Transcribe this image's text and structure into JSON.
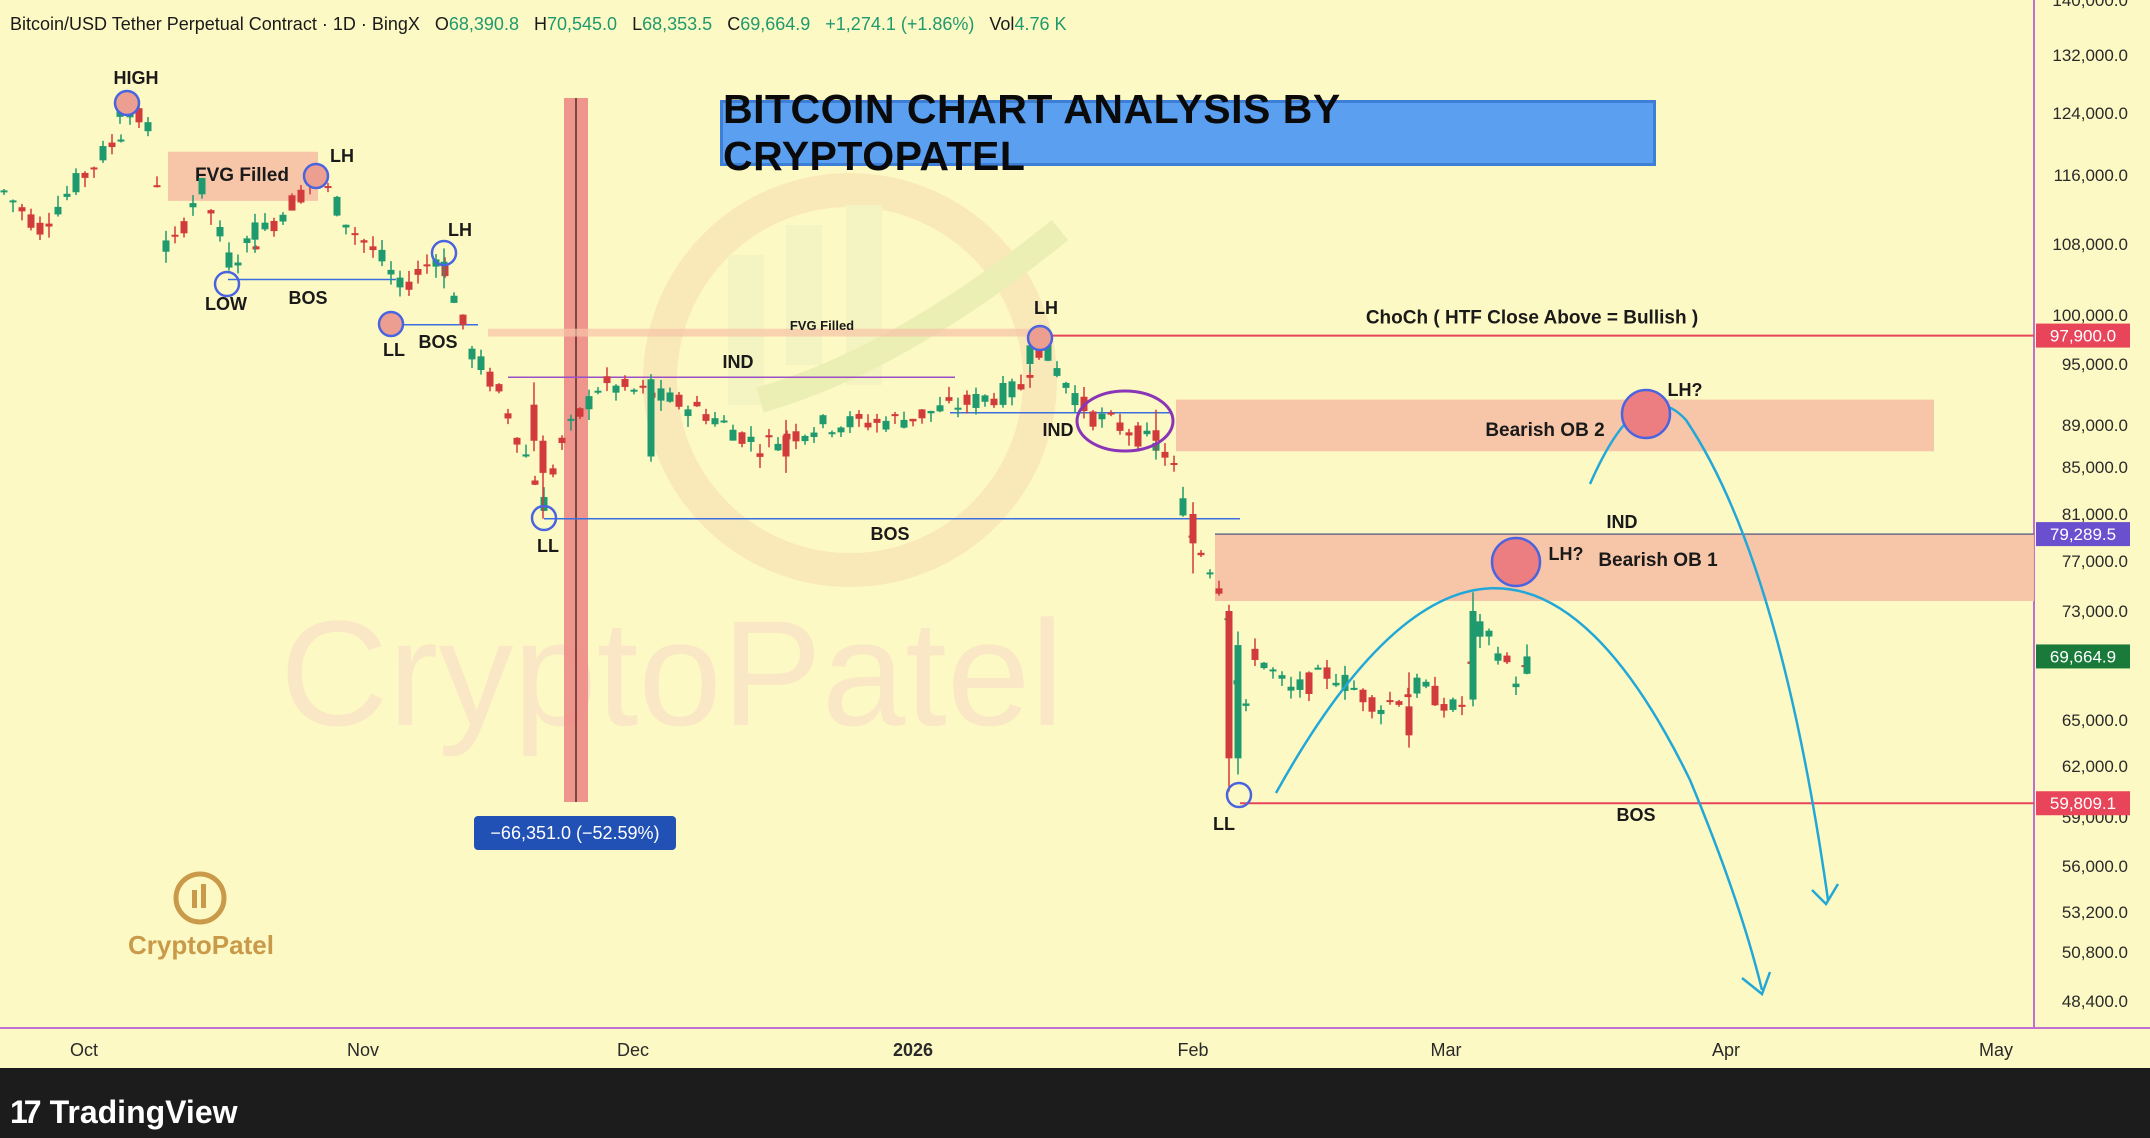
{
  "header": {
    "symbol": "Bitcoin/USD Tether Perpetual Contract · 1D · BingX",
    "open_label": "O",
    "open": "68,390.8",
    "high_label": "H",
    "high": "70,545.0",
    "low_label": "L",
    "low": "68,353.5",
    "close_label": "C",
    "close": "69,664.9",
    "change": "+1,274.1 (+1.86%)",
    "vol_label": "Vol",
    "vol": "4.76 K"
  },
  "title": "BITCOIN CHART ANALYSIS BY CRYPTOPATEL",
  "footer": {
    "brand": "TradingView"
  },
  "logo_text": "CryptoPatel",
  "colors": {
    "background": "#fdf9c4",
    "up": "#1f9a6f",
    "down": "#d23b3b",
    "resistance": "#e8455a",
    "zone": "#f7c3a6",
    "projection": "#22a8d8",
    "marker": "#4a64e0"
  },
  "chart_data": {
    "type": "candlestick",
    "title": "BITCOIN CHART ANALYSIS BY CRYPTOPATEL",
    "y_ticks": [
      "48,400.0",
      "50,800.0",
      "53,200.0",
      "56,000.0",
      "59,000.0",
      "62,000.0",
      "65,000.0",
      "73,000.0",
      "77,000.0",
      "81,000.0",
      "85,000.0",
      "89,000.0",
      "95,000.0",
      "100,000.0",
      "108,000.0",
      "116,000.0",
      "124,000.0",
      "132,000.0",
      "140,000.0"
    ],
    "x_ticks": [
      "Oct",
      "Nov",
      "Dec",
      "2026",
      "Feb",
      "Mar",
      "Apr",
      "May"
    ],
    "price_labels": [
      {
        "text": "97,900.0",
        "value": 97900,
        "color": "#e8455a"
      },
      {
        "text": "79,289.5",
        "value": 79289.5,
        "color": "#6a4fcf"
      },
      {
        "text": "69,664.9",
        "value": 69664.9,
        "color": "#1a7a3a"
      },
      {
        "text": "59,809.1",
        "value": 59809.1,
        "color": "#e8455a"
      }
    ],
    "measure": {
      "text": "−66,351.0 (−52.59%)"
    },
    "levels": [
      {
        "name": "choch",
        "value": 97900,
        "label": "ChoCh ( HTF Close Above = Bullish )"
      },
      {
        "name": "bos",
        "value": 59809.1,
        "label": "BOS"
      }
    ],
    "zones": [
      {
        "label": "Bearish OB 2",
        "from": 86500,
        "to": 91500
      },
      {
        "label": "Bearish OB 1",
        "from": 73800,
        "to": 79300
      },
      {
        "label": "FVG Filled",
        "from": 113000,
        "to": 119000
      },
      {
        "label": "FVG Filled",
        "from": 97800,
        "to": 98600
      }
    ],
    "candles": [
      {
        "date": "Oct 05",
        "ohlc": [
          123500,
          126100,
          122600,
          124800
        ]
      },
      {
        "date": "Oct 20",
        "ohlc": [
          108500,
          111500,
          107000,
          110500
        ]
      },
      {
        "date": "Nov 10",
        "ohlc": [
          105500,
          107500,
          103000,
          106000
        ]
      },
      {
        "date": "Nov 20",
        "ohlc": [
          91000,
          93200,
          86500,
          87500
        ]
      },
      {
        "date": "Nov 21",
        "ohlc": [
          87500,
          88000,
          80600,
          84500
        ]
      },
      {
        "date": "Dec 03",
        "ohlc": [
          86000,
          94000,
          85500,
          93500
        ]
      },
      {
        "date": "Dec 18",
        "ohlc": [
          88000,
          89500,
          84500,
          86000
        ]
      },
      {
        "date": "Jan 14",
        "ohlc": [
          95000,
          97900,
          94200,
          96900
        ]
      },
      {
        "date": "Jan 28",
        "ohlc": [
          88500,
          90500,
          86500,
          87500
        ]
      },
      {
        "date": "Feb 01",
        "ohlc": [
          81000,
          82000,
          76000,
          78500
        ]
      },
      {
        "date": "Feb 05",
        "ohlc": [
          73000,
          73500,
          60500,
          62500
        ]
      },
      {
        "date": "Feb 06",
        "ohlc": [
          62500,
          71500,
          61500,
          70500
        ]
      },
      {
        "date": "Feb 25",
        "ohlc": [
          66000,
          68500,
          63200,
          64000
        ]
      },
      {
        "date": "Mar 04",
        "ohlc": [
          66500,
          74500,
          66000,
          73000
        ]
      },
      {
        "date": "Mar 10",
        "ohlc": [
          68390.8,
          70545,
          68353.5,
          69664.9
        ]
      }
    ],
    "annotations": [
      {
        "text": "HIGH",
        "x": "Oct 05",
        "y": 126100
      },
      {
        "text": "LH",
        "x": "Oct 27",
        "y": 119000
      },
      {
        "text": "LOW",
        "x": "Oct 17",
        "y": 104000
      },
      {
        "text": "BOS",
        "x": "Oct 27",
        "y": 104000
      },
      {
        "text": "LH",
        "x": "Nov 11",
        "y": 108500
      },
      {
        "text": "LL",
        "x": "Nov 04",
        "y": 100000
      },
      {
        "text": "BOS",
        "x": "Nov 07",
        "y": 99000
      },
      {
        "text": "IND",
        "x": "Dec 07",
        "y": 94200
      },
      {
        "text": "LL",
        "x": "Nov 21",
        "y": 80600
      },
      {
        "text": "BOS",
        "x": "Dec 28",
        "y": 80200
      },
      {
        "text": "LH",
        "x": "Jan 14",
        "y": 99000
      },
      {
        "text": "IND",
        "x": "Jan 18",
        "y": 89800
      },
      {
        "text": "IND",
        "x": "Mar 16",
        "y": 81000
      },
      {
        "text": "LH?",
        "x": "Mar 01",
        "y": 77500
      },
      {
        "text": "LH?",
        "x": "Mar 22",
        "y": 91000
      },
      {
        "text": "LL",
        "x": "Feb 05",
        "y": 59800
      },
      {
        "text": "BOS",
        "x": "Mar 16",
        "y": 59000
      }
    ],
    "last_price": 69664.9,
    "grid": false
  }
}
